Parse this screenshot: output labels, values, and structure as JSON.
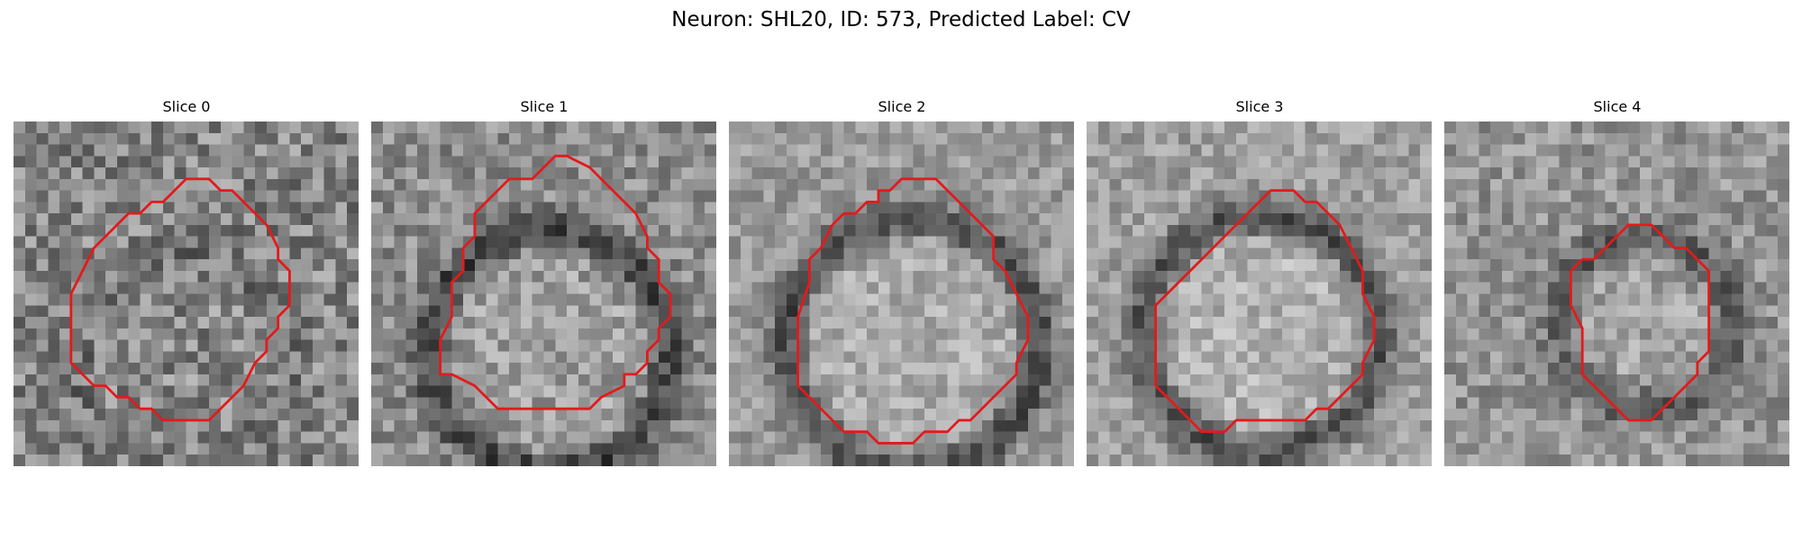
{
  "figure": {
    "title": "Neuron: SHL20, ID: 573, Predicted Label: CV",
    "contour_color": "#e31a1c",
    "colormap": "gray"
  },
  "panels": [
    {
      "title": "Slice 0",
      "mean": 0.52,
      "contrast": 0.06,
      "noise": 0.2,
      "center": [
        14.8,
        20.8
      ],
      "radius": 9.2,
      "contour": [
        [
          15,
          5
        ],
        [
          17,
          5
        ],
        [
          18,
          6
        ],
        [
          19,
          6
        ],
        [
          21,
          8
        ],
        [
          22,
          9
        ],
        [
          23,
          11
        ],
        [
          23,
          12
        ],
        [
          24,
          13
        ],
        [
          24,
          16
        ],
        [
          23,
          17
        ],
        [
          23,
          18
        ],
        [
          22,
          19
        ],
        [
          22,
          20
        ],
        [
          21,
          21
        ],
        [
          20,
          23
        ],
        [
          19,
          24
        ],
        [
          18,
          25
        ],
        [
          17,
          26
        ],
        [
          16,
          26
        ],
        [
          15,
          26
        ],
        [
          14,
          26
        ],
        [
          13,
          26
        ],
        [
          12,
          25
        ],
        [
          11,
          25
        ],
        [
          10,
          24
        ],
        [
          9,
          24
        ],
        [
          8,
          23
        ],
        [
          7,
          23
        ],
        [
          5,
          21
        ],
        [
          5,
          18
        ],
        [
          5,
          15
        ],
        [
          6,
          13
        ],
        [
          7,
          11
        ],
        [
          8,
          10
        ],
        [
          9,
          9
        ],
        [
          10,
          8
        ],
        [
          11,
          8
        ],
        [
          12,
          7
        ],
        [
          13,
          7
        ],
        [
          14,
          6
        ]
      ]
    },
    {
      "title": "Slice 1",
      "mean": 0.55,
      "contrast": 0.28,
      "noise": 0.16,
      "center": [
        15.5,
        20.0
      ],
      "radius": 10.5,
      "contour": [
        [
          16,
          3
        ],
        [
          17,
          3
        ],
        [
          19,
          4
        ],
        [
          20,
          5
        ],
        [
          21,
          6
        ],
        [
          22,
          7
        ],
        [
          23,
          8
        ],
        [
          24,
          10
        ],
        [
          24,
          11
        ],
        [
          25,
          12
        ],
        [
          25,
          14
        ],
        [
          26,
          15
        ],
        [
          26,
          17
        ],
        [
          25,
          18
        ],
        [
          25,
          19
        ],
        [
          24,
          20
        ],
        [
          24,
          21
        ],
        [
          23,
          22
        ],
        [
          22,
          22
        ],
        [
          22,
          23
        ],
        [
          20,
          24
        ],
        [
          19,
          25
        ],
        [
          16,
          25
        ],
        [
          13,
          25
        ],
        [
          11,
          25
        ],
        [
          10,
          24
        ],
        [
          9,
          23
        ],
        [
          7,
          22
        ],
        [
          6,
          22
        ],
        [
          6,
          19
        ],
        [
          7,
          17
        ],
        [
          7,
          14
        ],
        [
          8,
          13
        ],
        [
          8,
          11
        ],
        [
          9,
          10
        ],
        [
          9,
          8
        ],
        [
          10,
          7
        ],
        [
          11,
          6
        ],
        [
          12,
          5
        ],
        [
          14,
          5
        ]
      ]
    },
    {
      "title": "Slice 2",
      "mean": 0.6,
      "contrast": 0.3,
      "noise": 0.13,
      "center": [
        16.0,
        19.5
      ],
      "radius": 11.0,
      "contour": [
        [
          15,
          5
        ],
        [
          17,
          5
        ],
        [
          18,
          5
        ],
        [
          19,
          6
        ],
        [
          20,
          7
        ],
        [
          21,
          8
        ],
        [
          22,
          9
        ],
        [
          23,
          10
        ],
        [
          23,
          12
        ],
        [
          24,
          13
        ],
        [
          25,
          15
        ],
        [
          26,
          17
        ],
        [
          26,
          19
        ],
        [
          25,
          21
        ],
        [
          25,
          22
        ],
        [
          24,
          23
        ],
        [
          23,
          24
        ],
        [
          22,
          25
        ],
        [
          21,
          26
        ],
        [
          20,
          26
        ],
        [
          19,
          27
        ],
        [
          18,
          27
        ],
        [
          17,
          27
        ],
        [
          16,
          28
        ],
        [
          15,
          28
        ],
        [
          14,
          28
        ],
        [
          13,
          28
        ],
        [
          12,
          27
        ],
        [
          11,
          27
        ],
        [
          10,
          27
        ],
        [
          9,
          26
        ],
        [
          8,
          25
        ],
        [
          7,
          24
        ],
        [
          6,
          23
        ],
        [
          6,
          22
        ],
        [
          6,
          20
        ],
        [
          6,
          17
        ],
        [
          7,
          14
        ],
        [
          7,
          12
        ],
        [
          8,
          11
        ],
        [
          9,
          9
        ],
        [
          10,
          8
        ],
        [
          11,
          8
        ],
        [
          12,
          7
        ],
        [
          13,
          7
        ],
        [
          13,
          6
        ],
        [
          14,
          6
        ]
      ]
    },
    {
      "title": "Slice 3",
      "mean": 0.62,
      "contrast": 0.3,
      "noise": 0.13,
      "center": [
        15.2,
        18.5
      ],
      "radius": 10.3,
      "contour": [
        [
          16,
          6
        ],
        [
          17,
          6
        ],
        [
          18,
          6
        ],
        [
          19,
          7
        ],
        [
          20,
          7
        ],
        [
          21,
          8
        ],
        [
          22,
          9
        ],
        [
          23,
          11
        ],
        [
          24,
          13
        ],
        [
          24,
          15
        ],
        [
          25,
          17
        ],
        [
          25,
          19
        ],
        [
          24,
          21
        ],
        [
          24,
          22
        ],
        [
          23,
          23
        ],
        [
          22,
          24
        ],
        [
          21,
          25
        ],
        [
          20,
          25
        ],
        [
          19,
          26
        ],
        [
          17,
          26
        ],
        [
          15,
          26
        ],
        [
          13,
          26
        ],
        [
          12,
          27
        ],
        [
          11,
          27
        ],
        [
          10,
          27
        ],
        [
          9,
          26
        ],
        [
          8,
          25
        ],
        [
          7,
          24
        ],
        [
          6,
          23
        ],
        [
          6,
          21
        ],
        [
          6,
          18
        ],
        [
          6,
          16
        ],
        [
          7,
          15
        ],
        [
          8,
          14
        ],
        [
          9,
          13
        ],
        [
          10,
          12
        ],
        [
          11,
          11
        ],
        [
          12,
          10
        ],
        [
          13,
          9
        ],
        [
          14,
          8
        ],
        [
          15,
          7
        ]
      ]
    },
    {
      "title": "Slice 4",
      "mean": 0.58,
      "contrast": 0.22,
      "noise": 0.15,
      "center": [
        17.5,
        17.5
      ],
      "radius": 7.5,
      "contour": [
        [
          17,
          9
        ],
        [
          18,
          9
        ],
        [
          19,
          10
        ],
        [
          20,
          11
        ],
        [
          21,
          11
        ],
        [
          22,
          12
        ],
        [
          23,
          13
        ],
        [
          23,
          15
        ],
        [
          23,
          17
        ],
        [
          23,
          19
        ],
        [
          23,
          20
        ],
        [
          22,
          21
        ],
        [
          22,
          22
        ],
        [
          21,
          23
        ],
        [
          20,
          24
        ],
        [
          19,
          25
        ],
        [
          18,
          26
        ],
        [
          17,
          26
        ],
        [
          16,
          26
        ],
        [
          15,
          25
        ],
        [
          14,
          24
        ],
        [
          13,
          23
        ],
        [
          12,
          22
        ],
        [
          12,
          20
        ],
        [
          12,
          18
        ],
        [
          11,
          16
        ],
        [
          11,
          13
        ],
        [
          12,
          12
        ],
        [
          13,
          12
        ],
        [
          14,
          11
        ],
        [
          15,
          10
        ],
        [
          16,
          9
        ]
      ]
    }
  ]
}
